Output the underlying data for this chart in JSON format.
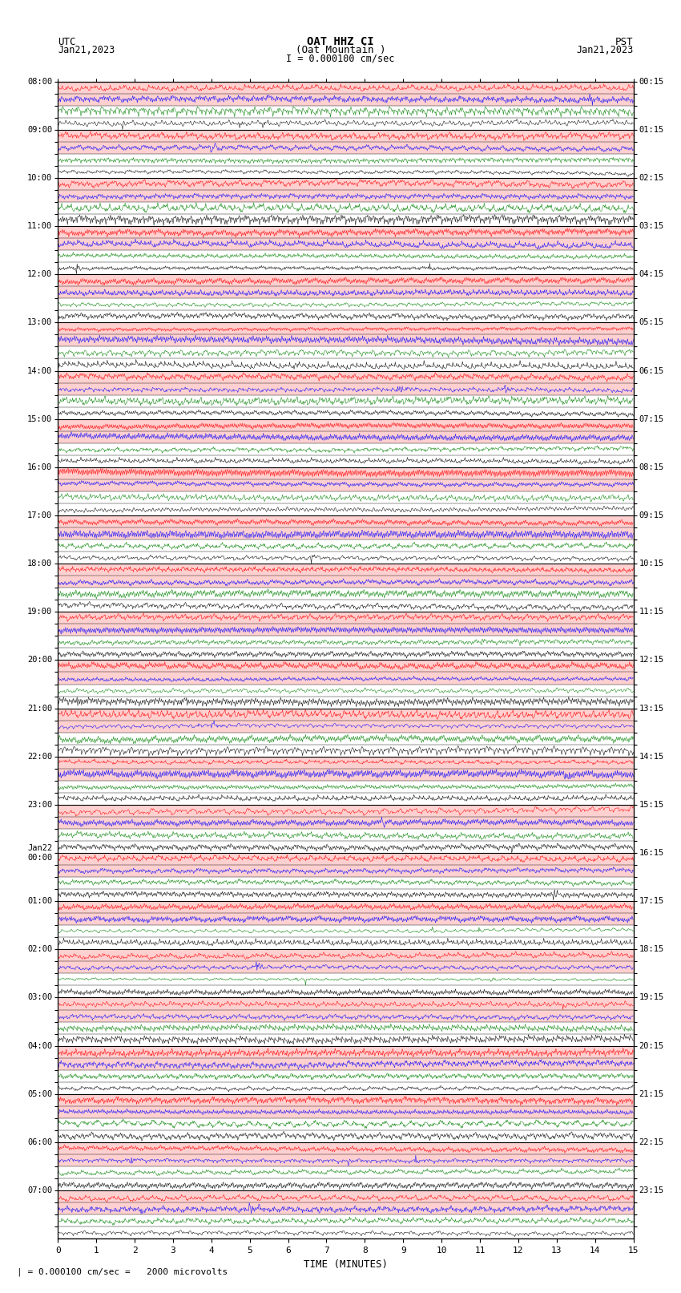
{
  "title_line1": "OAT HHZ CI",
  "title_line2": "(Oat Mountain )",
  "scale_label": "I = 0.000100 cm/sec",
  "left_header_line1": "UTC",
  "left_header_line2": "Jan21,2023",
  "right_header_line1": "PST",
  "right_header_line2": "Jan21,2023",
  "bottom_label": "TIME (MINUTES)",
  "bottom_note": "= 0.000100 cm/sec =   2000 microvolts",
  "xlabel_bar": "|",
  "utc_times": [
    "08:00",
    "",
    "",
    "",
    "09:00",
    "",
    "",
    "",
    "10:00",
    "",
    "",
    "",
    "11:00",
    "",
    "",
    "",
    "12:00",
    "",
    "",
    "",
    "13:00",
    "",
    "",
    "",
    "14:00",
    "",
    "",
    "",
    "15:00",
    "",
    "",
    "",
    "16:00",
    "",
    "",
    "",
    "17:00",
    "",
    "",
    "",
    "18:00",
    "",
    "",
    "",
    "19:00",
    "",
    "",
    "",
    "20:00",
    "",
    "",
    "",
    "21:00",
    "",
    "",
    "",
    "22:00",
    "",
    "",
    "",
    "23:00",
    "",
    "",
    "",
    "Jan22\n00:00",
    "",
    "",
    "",
    "01:00",
    "",
    "",
    "",
    "02:00",
    "",
    "",
    "",
    "03:00",
    "",
    "",
    "",
    "04:00",
    "",
    "",
    "",
    "05:00",
    "",
    "",
    "",
    "06:00",
    "",
    "",
    "",
    "07:00",
    "",
    "",
    ""
  ],
  "pst_times": [
    "00:15",
    "",
    "",
    "",
    "01:15",
    "",
    "",
    "",
    "02:15",
    "",
    "",
    "",
    "03:15",
    "",
    "",
    "",
    "04:15",
    "",
    "",
    "",
    "05:15",
    "",
    "",
    "",
    "06:15",
    "",
    "",
    "",
    "07:15",
    "",
    "",
    "",
    "08:15",
    "",
    "",
    "",
    "09:15",
    "",
    "",
    "",
    "10:15",
    "",
    "",
    "",
    "11:15",
    "",
    "",
    "",
    "12:15",
    "",
    "",
    "",
    "13:15",
    "",
    "",
    "",
    "14:15",
    "",
    "",
    "",
    "15:15",
    "",
    "",
    "",
    "16:15",
    "",
    "",
    "",
    "17:15",
    "",
    "",
    "",
    "18:15",
    "",
    "",
    "",
    "19:15",
    "",
    "",
    "",
    "20:15",
    "",
    "",
    "",
    "21:15",
    "",
    "",
    "",
    "22:15",
    "",
    "",
    "",
    "23:15",
    "",
    "",
    ""
  ],
  "num_hour_blocks": 24,
  "subrows_per_block": 4,
  "minutes_per_row": 15,
  "bg_color": "#ffffff",
  "sub_colors": [
    "red",
    "blue",
    "green",
    "black"
  ],
  "figsize": [
    8.5,
    16.13
  ],
  "dpi": 100
}
